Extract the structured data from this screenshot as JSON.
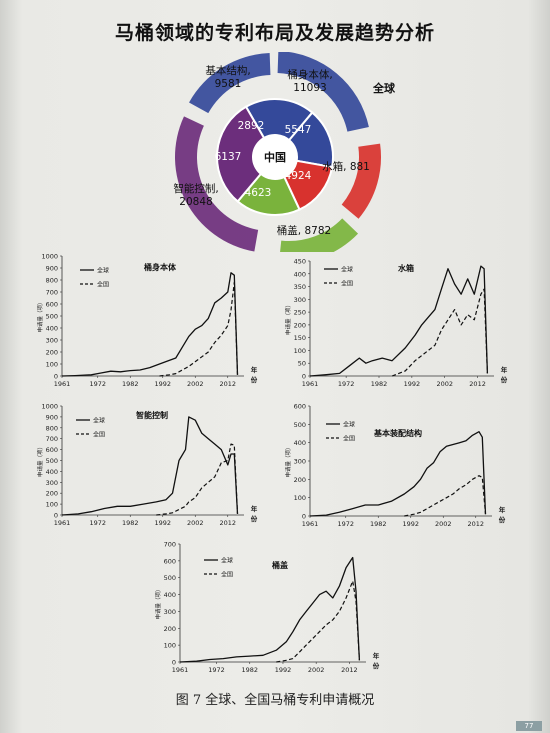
{
  "page_title": "马桶领域的专利布局及发展趋势分析",
  "caption": "图 7 全球、全国马桶专利申请概况",
  "page_number": "77",
  "colors": {
    "blue": "#34499a",
    "red": "#d8322e",
    "green": "#7ab33c",
    "purple": "#6c2e7c"
  },
  "donut": {
    "outer_label": "全球",
    "inner_label": "中国",
    "segments": [
      {
        "name": "桶身本体",
        "global": "11093",
        "china": "5547",
        "color": "#34499a"
      },
      {
        "name": "水箱",
        "global": "881",
        "china": "4924",
        "color": "#d8322e"
      },
      {
        "name": "桶盖",
        "global": "8782",
        "china": "4623",
        "color": "#7ab33c"
      },
      {
        "name": "智能控制",
        "global": "20848",
        "china": "6137",
        "color": "#6c2e7c"
      },
      {
        "name": "基本结构",
        "global": "9581",
        "china": "2892",
        "color": "#34499a"
      }
    ],
    "outer_labels": {
      "body": "桶身本体,\n11093",
      "tank": "水箱, 881",
      "lid": "桶盖, 8782",
      "smart": "智能控制,\n20848",
      "base": "基本结构,\n9581"
    }
  },
  "chart_data": [
    {
      "type": "line",
      "title": "桶身本体",
      "ylabel": "申请量（项）",
      "xlabel": "年份",
      "x_ticks": [
        "1961",
        "1972",
        "1982",
        "1992",
        "2002",
        "2012"
      ],
      "ylim": [
        0,
        1000
      ],
      "y_ticks": [
        0,
        100,
        200,
        300,
        400,
        500,
        600,
        700,
        800,
        900,
        1000
      ],
      "legend": [
        "全球",
        "全国"
      ],
      "x": [
        1961,
        1965,
        1970,
        1973,
        1976,
        1979,
        1982,
        1985,
        1988,
        1991,
        1994,
        1996,
        1998,
        2000,
        2002,
        2004,
        2006,
        2008,
        2010,
        2012,
        2013,
        2014,
        2015
      ],
      "series": [
        {
          "name": "全球",
          "values": [
            0,
            3,
            10,
            25,
            40,
            35,
            45,
            50,
            70,
            100,
            130,
            150,
            240,
            330,
            390,
            420,
            480,
            610,
            650,
            700,
            860,
            840,
            10
          ]
        },
        {
          "name": "全国",
          "values": [
            null,
            null,
            null,
            null,
            null,
            null,
            null,
            null,
            null,
            0,
            10,
            20,
            50,
            80,
            120,
            160,
            200,
            280,
            340,
            420,
            550,
            780,
            10
          ]
        }
      ]
    },
    {
      "type": "line",
      "title": "水箱",
      "ylabel": "申请量（项）",
      "xlabel": "年份",
      "x_ticks": [
        "1961",
        "1972",
        "1982",
        "1992",
        "2002",
        "2012"
      ],
      "ylim": [
        0,
        450
      ],
      "y_ticks": [
        0,
        50,
        100,
        150,
        200,
        250,
        300,
        350,
        400,
        450
      ],
      "legend": [
        "全球",
        "全国"
      ],
      "x": [
        1961,
        1966,
        1970,
        1973,
        1976,
        1978,
        1980,
        1983,
        1986,
        1990,
        1993,
        1995,
        1997,
        1999,
        2001,
        2003,
        2005,
        2007,
        2009,
        2011,
        2013,
        2014,
        2015
      ],
      "series": [
        {
          "name": "全球",
          "values": [
            0,
            5,
            10,
            40,
            70,
            50,
            60,
            70,
            60,
            110,
            160,
            200,
            230,
            260,
            340,
            420,
            360,
            320,
            380,
            320,
            430,
            420,
            10
          ]
        },
        {
          "name": "全国",
          "values": [
            null,
            null,
            null,
            null,
            null,
            null,
            null,
            null,
            0,
            20,
            60,
            80,
            100,
            120,
            180,
            220,
            260,
            200,
            240,
            220,
            320,
            340,
            10
          ]
        }
      ]
    },
    {
      "type": "line",
      "title": "智能控制",
      "ylabel": "申请量（项）",
      "xlabel": "年份",
      "x_ticks": [
        "1961",
        "1972",
        "1982",
        "1992",
        "2002",
        "2012"
      ],
      "ylim": [
        0,
        1000
      ],
      "y_ticks": [
        0,
        100,
        200,
        300,
        400,
        500,
        600,
        700,
        800,
        900,
        1000
      ],
      "legend": [
        "全球",
        "全国"
      ],
      "x": [
        1961,
        1966,
        1970,
        1974,
        1978,
        1982,
        1986,
        1990,
        1993,
        1995,
        1997,
        1999,
        2000,
        2002,
        2004,
        2006,
        2008,
        2010,
        2012,
        2013,
        2014,
        2015
      ],
      "series": [
        {
          "name": "全球",
          "values": [
            0,
            10,
            30,
            60,
            80,
            80,
            100,
            120,
            140,
            200,
            500,
            600,
            900,
            870,
            750,
            700,
            650,
            600,
            460,
            560,
            560,
            10
          ]
        },
        {
          "name": "全国",
          "values": [
            null,
            null,
            null,
            null,
            null,
            null,
            null,
            0,
            10,
            20,
            50,
            80,
            120,
            160,
            250,
            300,
            350,
            480,
            500,
            650,
            640,
            10
          ]
        }
      ]
    },
    {
      "type": "line",
      "title": "基本装配结构",
      "ylabel": "申请量（项）",
      "xlabel": "年份",
      "x_ticks": [
        "1961",
        "1972",
        "1982",
        "1992",
        "2002",
        "2012"
      ],
      "ylim": [
        0,
        600
      ],
      "y_ticks": [
        0,
        100,
        200,
        300,
        400,
        500,
        600
      ],
      "legend": [
        "全球",
        "全国"
      ],
      "x": [
        1961,
        1966,
        1970,
        1974,
        1978,
        1982,
        1986,
        1990,
        1993,
        1995,
        1997,
        1999,
        2001,
        2003,
        2005,
        2007,
        2009,
        2011,
        2013,
        2014,
        2015
      ],
      "series": [
        {
          "name": "全球",
          "values": [
            0,
            5,
            20,
            40,
            60,
            60,
            80,
            120,
            160,
            200,
            260,
            290,
            350,
            380,
            390,
            400,
            410,
            440,
            460,
            430,
            10
          ]
        },
        {
          "name": "全国",
          "values": [
            null,
            null,
            null,
            null,
            null,
            null,
            null,
            0,
            10,
            20,
            40,
            60,
            80,
            100,
            120,
            150,
            170,
            200,
            220,
            210,
            10
          ]
        }
      ]
    },
    {
      "type": "line",
      "title": "桶盖",
      "ylabel": "申请量（项）",
      "xlabel": "年份",
      "x_ticks": [
        "1961",
        "1972",
        "1982",
        "1992",
        "2002",
        "2012"
      ],
      "ylim": [
        0,
        700
      ],
      "y_ticks": [
        0,
        100,
        200,
        300,
        400,
        500,
        600,
        700
      ],
      "legend": [
        "全球",
        "全国"
      ],
      "x": [
        1961,
        1966,
        1970,
        1974,
        1978,
        1982,
        1986,
        1990,
        1993,
        1995,
        1997,
        1999,
        2001,
        2003,
        2005,
        2007,
        2009,
        2011,
        2013,
        2014,
        2015
      ],
      "series": [
        {
          "name": "全球",
          "values": [
            0,
            5,
            15,
            20,
            30,
            35,
            40,
            70,
            120,
            180,
            250,
            300,
            350,
            400,
            420,
            380,
            450,
            560,
            620,
            420,
            10
          ]
        },
        {
          "name": "全国",
          "values": [
            null,
            null,
            null,
            null,
            null,
            null,
            null,
            0,
            10,
            20,
            60,
            100,
            140,
            180,
            220,
            250,
            300,
            380,
            480,
            360,
            10
          ]
        }
      ]
    }
  ]
}
